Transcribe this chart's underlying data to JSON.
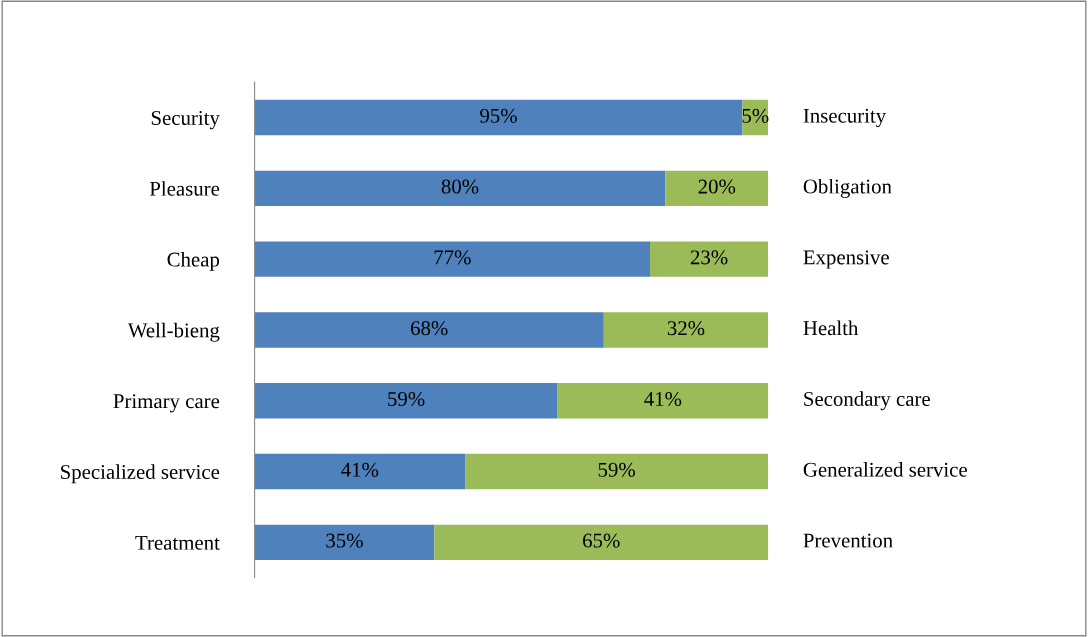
{
  "chart_data": {
    "type": "bar",
    "orientation": "horizontal",
    "stacked": true,
    "categories": [
      "Security",
      "Pleasure",
      "Cheap",
      "Well-bieng",
      "Primary care",
      "Specialized service",
      "Treatment"
    ],
    "y2_categories": [
      "Insecurity",
      "Obligation",
      "Expensive",
      "Health",
      "Secondary care",
      "Generalized service",
      "Prevention"
    ],
    "series": [
      {
        "color": "#4f81bd",
        "values": [
          95,
          80,
          77,
          68,
          59,
          41,
          35
        ],
        "value_labels": [
          "95%",
          "80%",
          "77%",
          "68%",
          "59%",
          "41%",
          "35%"
        ]
      },
      {
        "color": "#9bbb59",
        "values": [
          5,
          20,
          23,
          32,
          41,
          59,
          65
        ],
        "value_labels": [
          "5%",
          "20%",
          "23%",
          "32%",
          "41%",
          "59%",
          "65%"
        ]
      }
    ],
    "xlim": [
      0,
      100
    ],
    "tick_labels": "y",
    "grid": false,
    "legend": false
  }
}
